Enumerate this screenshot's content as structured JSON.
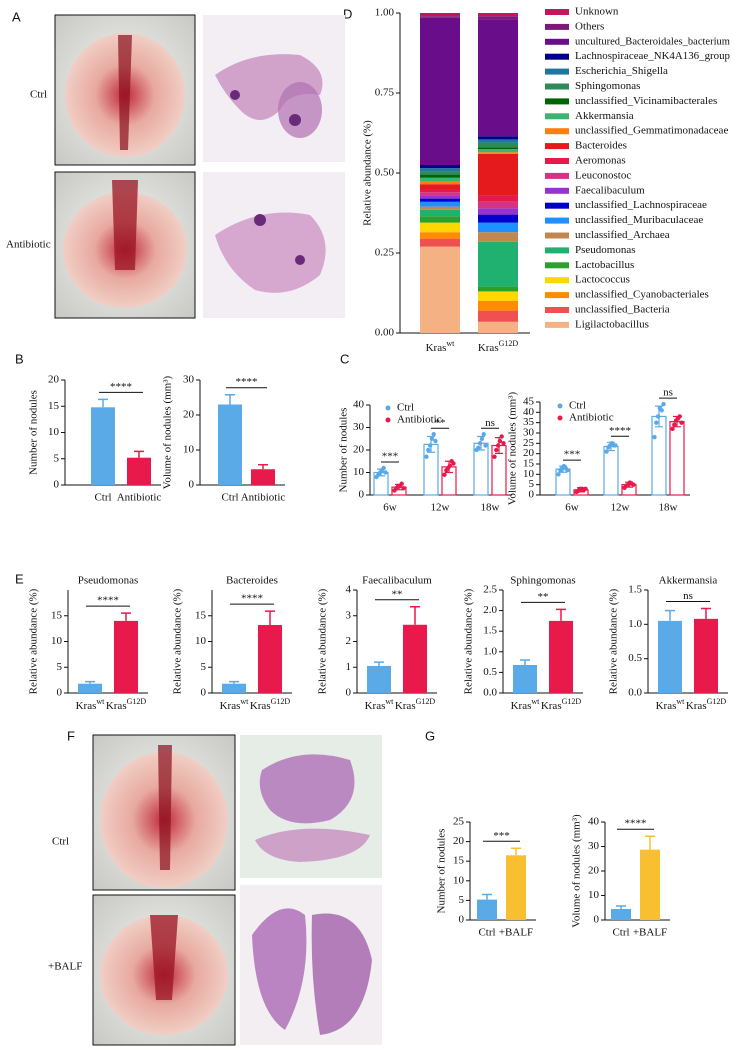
{
  "panel_labels": [
    "A",
    "B",
    "C",
    "D",
    "E",
    "F",
    "G"
  ],
  "image_labels": [
    "Ctrl",
    "Antibiotic",
    "Ctrl",
    "+BALF"
  ],
  "chart_data": [
    {
      "type": "stacked_bar",
      "ylabel": "Relative abundance (%)",
      "categories": [
        {
          "text": "Kras",
          "sup": "wt"
        },
        {
          "text": "Kras",
          "sup": "G12D"
        }
      ],
      "ylim": [
        0,
        1
      ],
      "yticks": [
        {
          "value": 0,
          "label": "0.00"
        },
        {
          "value": 0.25,
          "label": "0.25"
        },
        {
          "value": 0.5,
          "label": "0.50"
        },
        {
          "value": 0.75,
          "label": "0.75"
        },
        {
          "value": 1,
          "label": "1.00"
        }
      ],
      "series": [
        {
          "name": "Unknown",
          "color": "#c2185b",
          "values": [
            0.01,
            0.01
          ]
        },
        {
          "name": "Others",
          "color": "#7b1a7b",
          "values": [
            0.005,
            0.01
          ]
        },
        {
          "name": "uncultured_Bacteroidales_bacterium",
          "color": "#6a0d8a",
          "values": [
            0.46,
            0.365
          ]
        },
        {
          "name": "Lachnospiraceae_NK4A136_group",
          "color": "#00008b",
          "values": [
            0.01,
            0.01
          ]
        },
        {
          "name": "Escherichia_Shigella",
          "color": "#1f77a0",
          "values": [
            0.01,
            0.01
          ]
        },
        {
          "name": "Sphingomonas",
          "color": "#2e8b57",
          "values": [
            0.01,
            0.015
          ]
        },
        {
          "name": "unclassified_Vicinamibacterales",
          "color": "#006400",
          "values": [
            0.01,
            0.005
          ]
        },
        {
          "name": "Akkermansia",
          "color": "#3cb371",
          "values": [
            0.01,
            0.01
          ]
        },
        {
          "name": "unclassified_Gemmatimonadaceae",
          "color": "#ff7f0e",
          "values": [
            0.01,
            0.005
          ]
        },
        {
          "name": "Bacteroides",
          "color": "#e41a1c",
          "values": [
            0.015,
            0.13
          ]
        },
        {
          "name": "Aeromonas",
          "color": "#e6194b",
          "values": [
            0.01,
            0.02
          ]
        },
        {
          "name": "Leuconostoc",
          "color": "#d63384",
          "values": [
            0.01,
            0.02
          ]
        },
        {
          "name": "Faecalibaculum",
          "color": "#9932cc",
          "values": [
            0.01,
            0.02
          ]
        },
        {
          "name": "unclassified_Lachnospiraceae",
          "color": "#0000cd",
          "values": [
            0.01,
            0.025
          ]
        },
        {
          "name": "unclassified_Muribaculaceae",
          "color": "#1e90ff",
          "values": [
            0.015,
            0.03
          ]
        },
        {
          "name": "unclassified_Archaea",
          "color": "#c08850",
          "values": [
            0.01,
            0.03
          ]
        },
        {
          "name": "Pseudomonas",
          "color": "#20b070",
          "values": [
            0.02,
            0.14
          ]
        },
        {
          "name": "Lactobacillus",
          "color": "#2ca02c",
          "values": [
            0.02,
            0.015
          ]
        },
        {
          "name": "Lactococcus",
          "color": "#ffd700",
          "values": [
            0.03,
            0.03
          ]
        },
        {
          "name": "unclassified_Cyanobacteriales",
          "color": "#ff8c00",
          "values": [
            0.02,
            0.03
          ]
        },
        {
          "name": "unclassified_Bacteria",
          "color": "#f05050",
          "values": [
            0.025,
            0.035
          ]
        },
        {
          "name": "Ligilactobacillus",
          "color": "#f4b183",
          "values": [
            0.27,
            0.035
          ]
        }
      ]
    },
    {
      "type": "bar",
      "ylabel": "Number of nodules",
      "categories": [
        "Ctrl",
        "Antibiotic"
      ],
      "values": [
        14.8,
        5.2
      ],
      "errors": [
        1.5,
        1.2
      ],
      "colors": [
        "#5aaae8",
        "#e8194b"
      ],
      "ylim": [
        0,
        20
      ],
      "yticks": [
        0,
        5,
        10,
        15,
        20
      ],
      "significance": "****"
    },
    {
      "type": "bar",
      "ylabel": "Volume of nodules (mm³)",
      "categories": [
        "Ctrl",
        "Antibiotic"
      ],
      "values": [
        23,
        4.5
      ],
      "errors": [
        2.8,
        1.3
      ],
      "colors": [
        "#5aaae8",
        "#e8194b"
      ],
      "ylim": [
        0,
        30
      ],
      "yticks": [
        0,
        10,
        20,
        30
      ],
      "significance": "****"
    },
    {
      "type": "grouped_bar",
      "ylabel": "Number of nodules",
      "categories": [
        "6w",
        "12w",
        "18w"
      ],
      "ylim": [
        0,
        40
      ],
      "yticks": [
        0,
        10,
        20,
        30,
        40
      ],
      "significance": [
        "***",
        "**",
        "ns"
      ],
      "series": [
        {
          "name": "Ctrl",
          "color": "#5aaae8",
          "values": [
            10,
            22.5,
            23
          ],
          "errors": [
            1.5,
            3.5,
            3
          ],
          "points": [
            [
              8,
              9,
              10,
              11,
              12,
              10
            ],
            [
              17,
              20,
              22,
              25,
              27,
              24
            ],
            [
              20,
              21,
              23,
              25,
              27,
              22
            ]
          ]
        },
        {
          "name": "Antibiotic",
          "color": "#e8194b",
          "values": [
            3.5,
            12.5,
            22
          ],
          "errors": [
            1.2,
            2.5,
            3.5
          ],
          "points": [
            [
              2,
              3,
              4,
              4,
              5,
              3
            ],
            [
              9,
              11,
              12,
              13,
              15,
              14
            ],
            [
              17,
              20,
              22,
              24,
              26,
              23
            ]
          ]
        }
      ]
    },
    {
      "type": "grouped_bar",
      "ylabel": "Volume of nodules (mm³)",
      "categories": [
        "6w",
        "12w",
        "18w"
      ],
      "ylim": [
        0,
        45
      ],
      "yticks": [
        0,
        5,
        10,
        15,
        20,
        25,
        30,
        35,
        40,
        45
      ],
      "significance": [
        "***",
        "****",
        "ns"
      ],
      "series": [
        {
          "name": "Ctrl",
          "color": "#5aaae8",
          "values": [
            12.5,
            23.5,
            38
          ],
          "errors": [
            1.5,
            2,
            5
          ],
          "points": [
            [
              10,
              12,
              13,
              14,
              13,
              12
            ],
            [
              21,
              23,
              24,
              25,
              24,
              24
            ],
            [
              28,
              35,
              38,
              42,
              41,
              44
            ]
          ]
        },
        {
          "name": "Antibiotic",
          "color": "#e8194b",
          "values": [
            2.5,
            5,
            35.5
          ],
          "errors": [
            1,
            1.2,
            2.5
          ],
          "points": [
            [
              1.5,
              2,
              3,
              3,
              2.5,
              3
            ],
            [
              3.5,
              4.5,
              5,
              6,
              5.5,
              5
            ],
            [
              32,
              34,
              36,
              37,
              38,
              35
            ]
          ]
        }
      ]
    },
    {
      "type": "bar",
      "title": "Pseudomonas",
      "ylabel": "Relative abundance (%)",
      "categories": [
        {
          "text": "Kras",
          "sup": "wt"
        },
        {
          "text": "Kras",
          "sup": "G12D"
        }
      ],
      "values": [
        1.8,
        14
      ],
      "errors": [
        0.4,
        1.5
      ],
      "colors": [
        "#5aaae8",
        "#e8194b"
      ],
      "ylim": [
        0,
        20
      ],
      "yticks": [
        0,
        5,
        10,
        15
      ],
      "significance": "****"
    },
    {
      "type": "bar",
      "title": "Bacteroides",
      "ylabel": "Relative abundance (%)",
      "categories": [
        {
          "text": "Kras",
          "sup": "wt"
        },
        {
          "text": "Kras",
          "sup": "G12D"
        }
      ],
      "values": [
        1.8,
        13.2
      ],
      "errors": [
        0.4,
        2.7
      ],
      "colors": [
        "#5aaae8",
        "#e8194b"
      ],
      "ylim": [
        0,
        20
      ],
      "yticks": [
        0,
        5,
        10,
        15
      ],
      "significance": "****"
    },
    {
      "type": "bar",
      "title": "Faecalibaculum",
      "ylabel": "Relative abundance (%)",
      "categories": [
        {
          "text": "Kras",
          "sup": "wt"
        },
        {
          "text": "Kras",
          "sup": "G12D"
        }
      ],
      "values": [
        1.05,
        2.65
      ],
      "errors": [
        0.15,
        0.7
      ],
      "colors": [
        "#5aaae8",
        "#e8194b"
      ],
      "ylim": [
        0,
        4
      ],
      "yticks": [
        0,
        1,
        2,
        3,
        4
      ],
      "significance": "**"
    },
    {
      "type": "bar",
      "title": "Sphingomonas",
      "ylabel": "Relative abundance (%)",
      "categories": [
        {
          "text": "Kras",
          "sup": "wt"
        },
        {
          "text": "Kras",
          "sup": "G12D"
        }
      ],
      "values": [
        0.68,
        1.75
      ],
      "errors": [
        0.12,
        0.28
      ],
      "colors": [
        "#5aaae8",
        "#e8194b"
      ],
      "ylim": [
        0,
        2.5
      ],
      "yticks": [
        {
          "value": 0,
          "label": "0.0"
        },
        {
          "value": 0.5,
          "label": "0.5"
        },
        {
          "value": 1,
          "label": "1.0"
        },
        {
          "value": 1.5,
          "label": "1.5"
        },
        {
          "value": 2,
          "label": "2.0"
        },
        {
          "value": 2.5,
          "label": "2.5"
        }
      ],
      "significance": "**"
    },
    {
      "type": "bar",
      "title": "Akkermansia",
      "ylabel": "Relative abundance (%)",
      "categories": [
        {
          "text": "Kras",
          "sup": "wt"
        },
        {
          "text": "Kras",
          "sup": "G12D"
        }
      ],
      "values": [
        1.05,
        1.08
      ],
      "errors": [
        0.15,
        0.15
      ],
      "colors": [
        "#5aaae8",
        "#e8194b"
      ],
      "ylim": [
        0,
        1.5
      ],
      "yticks": [
        {
          "value": 0,
          "label": "0.0"
        },
        {
          "value": 0.5,
          "label": "0.5"
        },
        {
          "value": 1,
          "label": "1.0"
        },
        {
          "value": 1.5,
          "label": "1.5"
        }
      ],
      "significance": "ns"
    },
    {
      "type": "bar",
      "ylabel": "Number of nodules",
      "categories": [
        "Ctrl",
        "+BALF"
      ],
      "values": [
        5.2,
        16.5
      ],
      "errors": [
        1.3,
        1.8
      ],
      "colors": [
        "#5aaae8",
        "#f8c030"
      ],
      "ylim": [
        0,
        25
      ],
      "yticks": [
        0,
        5,
        10,
        15,
        20,
        25
      ],
      "significance": "***"
    },
    {
      "type": "bar",
      "ylabel": "Volume of nodules (mm³)",
      "categories": [
        "Ctrl",
        "+BALF"
      ],
      "values": [
        4.5,
        28.7
      ],
      "errors": [
        1.2,
        5.5
      ],
      "colors": [
        "#5aaae8",
        "#f8c030"
      ],
      "ylim": [
        0,
        40
      ],
      "yticks": [
        0,
        10,
        20,
        30,
        40
      ],
      "significance": "****"
    }
  ]
}
